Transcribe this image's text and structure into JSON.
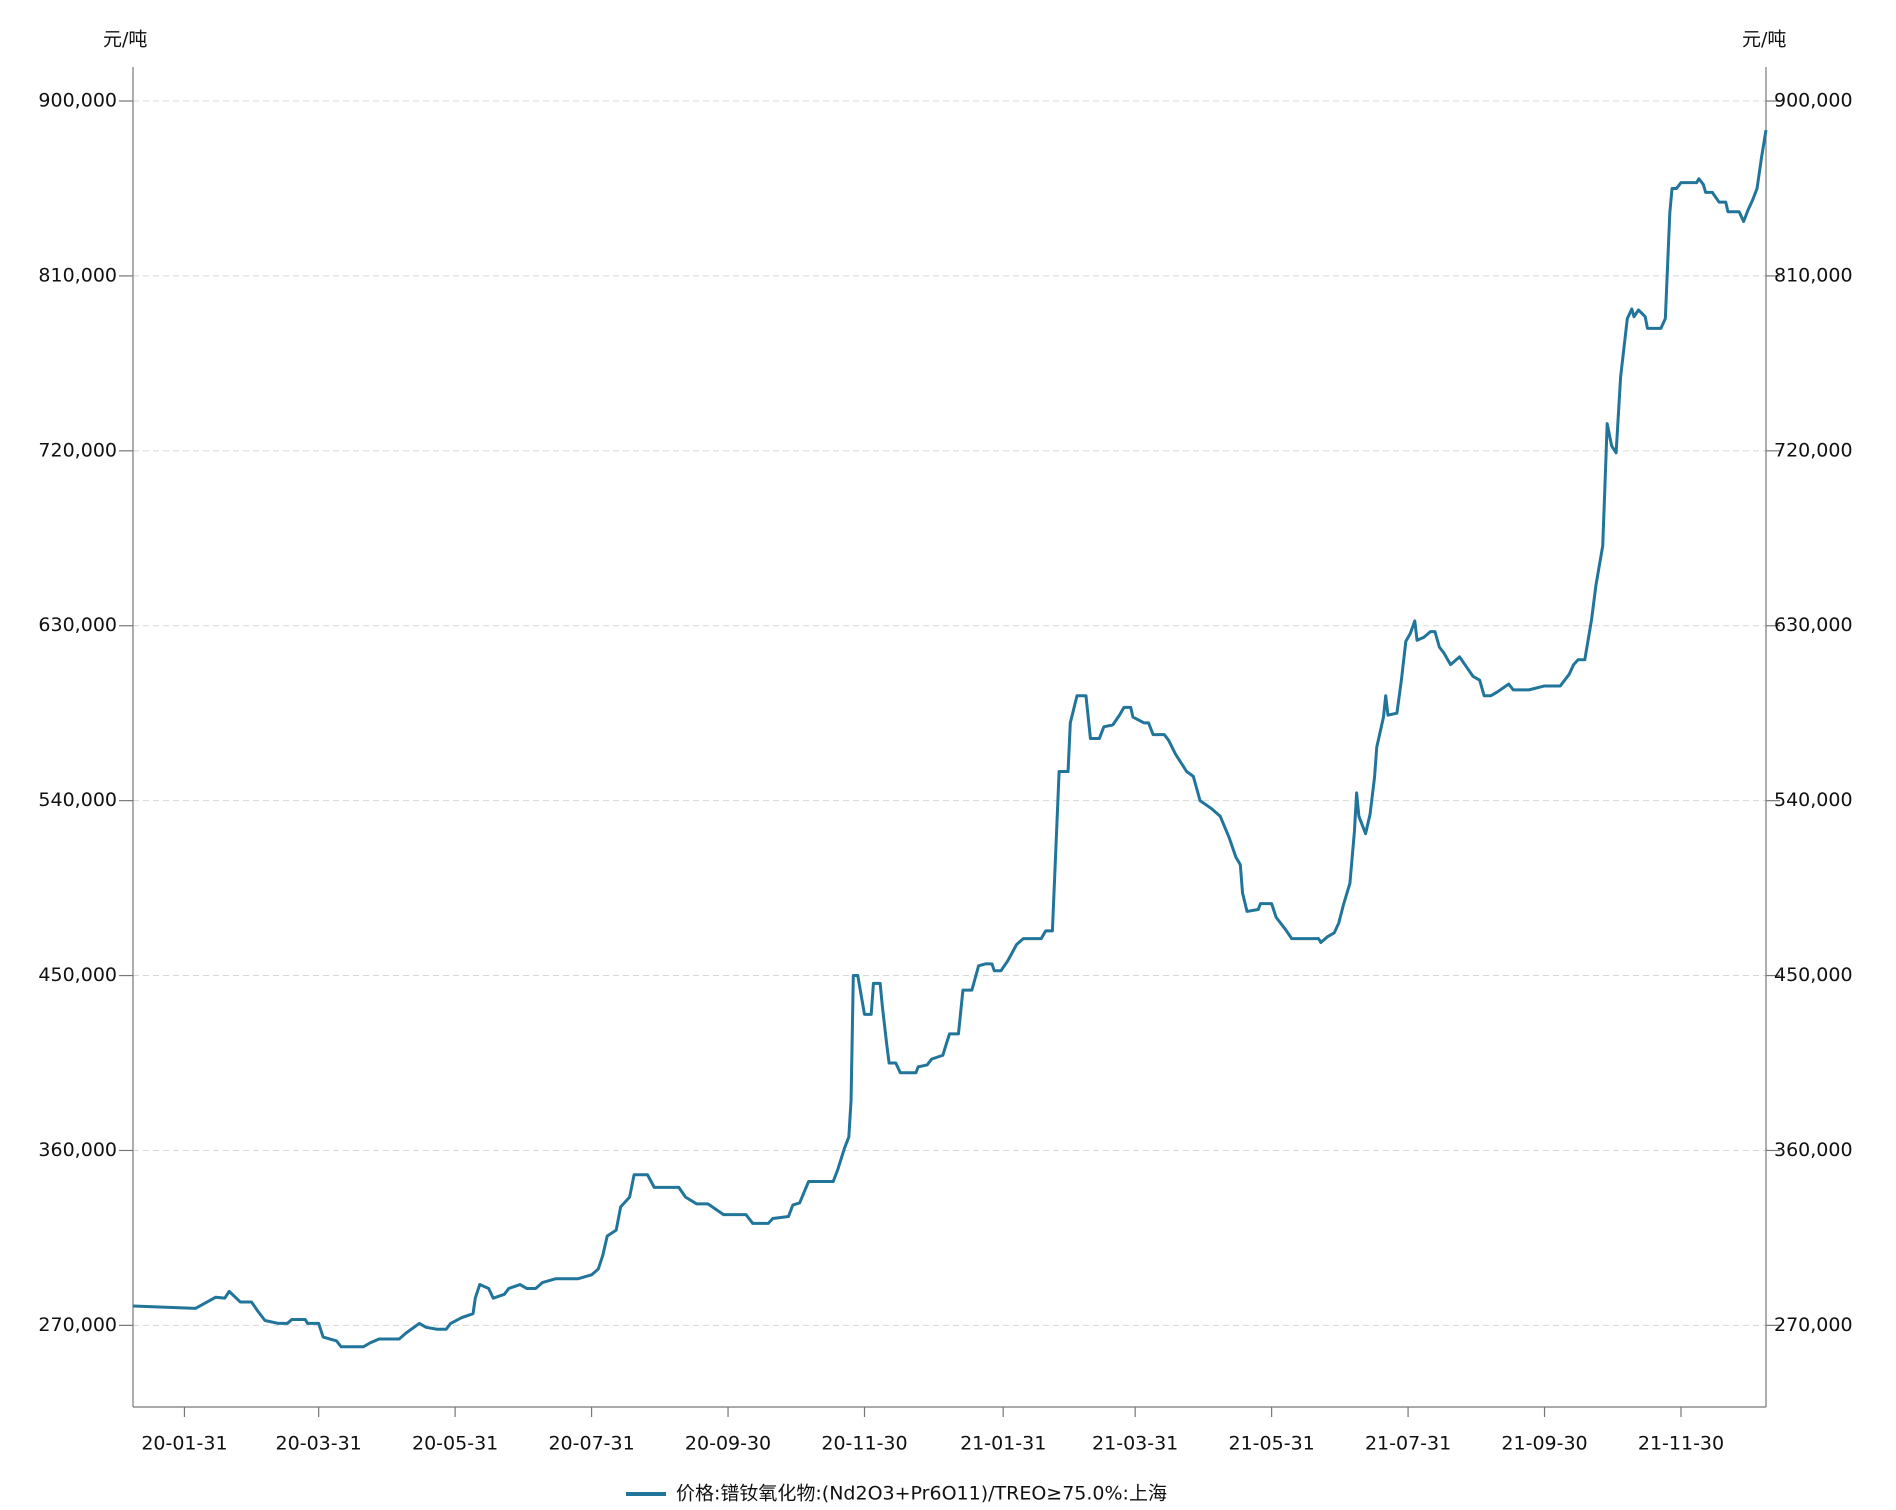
{
  "chart_data": {
    "type": "line",
    "y_axis_label": "元/吨",
    "x": [
      "2020-01-08",
      "2020-02-05",
      "2020-02-14",
      "2020-02-18",
      "2020-02-20",
      "2020-02-25",
      "2020-03-01",
      "2020-03-04",
      "2020-03-07",
      "2020-03-13",
      "2020-03-17",
      "2020-03-19",
      "2020-03-25",
      "2020-03-26",
      "2020-03-31",
      "2020-04-02",
      "2020-04-08",
      "2020-04-10",
      "2020-04-20",
      "2020-04-23",
      "2020-04-27",
      "2020-05-06",
      "2020-05-09",
      "2020-05-15",
      "2020-05-18",
      "2020-05-23",
      "2020-05-27",
      "2020-05-29",
      "2020-06-03",
      "2020-06-08",
      "2020-06-09",
      "2020-06-11",
      "2020-06-15",
      "2020-06-17",
      "2020-06-22",
      "2020-06-24",
      "2020-06-29",
      "2020-07-02",
      "2020-07-06",
      "2020-07-09",
      "2020-07-15",
      "2020-07-25",
      "2020-07-31",
      "2020-08-03",
      "2020-08-05",
      "2020-08-07",
      "2020-08-11",
      "2020-08-13",
      "2020-08-17",
      "2020-08-19",
      "2020-08-25",
      "2020-08-28",
      "2020-09-08",
      "2020-09-11",
      "2020-09-16",
      "2020-09-21",
      "2020-09-28",
      "2020-10-08",
      "2020-10-11",
      "2020-10-18",
      "2020-10-20",
      "2020-10-27",
      "2020-10-29",
      "2020-11-01",
      "2020-11-05",
      "2020-11-16",
      "2020-11-18",
      "2020-11-21",
      "2020-11-23",
      "2020-11-24",
      "2020-11-25",
      "2020-11-27",
      "2020-11-30",
      "2020-12-03",
      "2020-12-04",
      "2020-12-07",
      "2020-12-08",
      "2020-12-10",
      "2020-12-11",
      "2020-12-14",
      "2020-12-16",
      "2020-12-23",
      "2020-12-24",
      "2020-12-28",
      "2020-12-30",
      "2021-01-04",
      "2021-01-07",
      "2021-01-11",
      "2021-01-13",
      "2021-01-17",
      "2021-01-20",
      "2021-01-23",
      "2021-01-26",
      "2021-01-27",
      "2021-01-30",
      "2021-02-02",
      "2021-02-06",
      "2021-02-09",
      "2021-02-17",
      "2021-02-19",
      "2021-02-22",
      "2021-02-25",
      "2021-03-01",
      "2021-03-02",
      "2021-03-05",
      "2021-03-09",
      "2021-03-11",
      "2021-03-15",
      "2021-03-17",
      "2021-03-21",
      "2021-03-24",
      "2021-03-26",
      "2021-03-29",
      "2021-03-30",
      "2021-04-04",
      "2021-04-06",
      "2021-04-08",
      "2021-04-13",
      "2021-04-15",
      "2021-04-18",
      "2021-04-23",
      "2021-04-26",
      "2021-04-29",
      "2021-05-04",
      "2021-05-08",
      "2021-05-12",
      "2021-05-15",
      "2021-05-17",
      "2021-05-18",
      "2021-05-20",
      "2021-05-25",
      "2021-05-26",
      "2021-05-31",
      "2021-06-02",
      "2021-06-06",
      "2021-06-09",
      "2021-06-21",
      "2021-06-22",
      "2021-06-25",
      "2021-06-28",
      "2021-06-30",
      "2021-07-02",
      "2021-07-05",
      "2021-07-07",
      "2021-07-08",
      "2021-07-09",
      "2021-07-12",
      "2021-07-14",
      "2021-07-16",
      "2021-07-17",
      "2021-07-20",
      "2021-07-21",
      "2021-07-22",
      "2021-07-26",
      "2021-07-28",
      "2021-07-30",
      "2021-08-01",
      "2021-08-03",
      "2021-08-04",
      "2021-08-07",
      "2021-08-10",
      "2021-08-12",
      "2021-08-14",
      "2021-08-16",
      "2021-08-19",
      "2021-08-21",
      "2021-08-23",
      "2021-08-26",
      "2021-08-29",
      "2021-09-01",
      "2021-09-03",
      "2021-09-06",
      "2021-09-09",
      "2021-09-14",
      "2021-09-16",
      "2021-09-23",
      "2021-09-30",
      "2021-10-07",
      "2021-10-11",
      "2021-10-13",
      "2021-10-15",
      "2021-10-18",
      "2021-10-21",
      "2021-10-23",
      "2021-10-26",
      "2021-10-27",
      "2021-10-28",
      "2021-10-30",
      "2021-11-01",
      "2021-11-03",
      "2021-11-05",
      "2021-11-06",
      "2021-11-08",
      "2021-11-09",
      "2021-11-11",
      "2021-11-14",
      "2021-11-15",
      "2021-11-21",
      "2021-11-23",
      "2021-11-25",
      "2021-11-26",
      "2021-11-28",
      "2021-11-30",
      "2021-12-07",
      "2021-12-08",
      "2021-12-10",
      "2021-12-11",
      "2021-12-14",
      "2021-12-17",
      "2021-12-20",
      "2021-12-21",
      "2021-12-26",
      "2021-12-28",
      "2021-12-30",
      "2022-01-01",
      "2022-01-03",
      "2022-01-05",
      "2022-01-07"
    ],
    "series": [
      {
        "name": "价格:镨钕氧化物:(Nd2O3+Pr6O11)/TREO≥75.0%:上海",
        "color": "#21759b",
        "values": [
          280000,
          278750,
          284500,
          284000,
          287500,
          282000,
          282000,
          277000,
          272500,
          271000,
          271000,
          273000,
          273000,
          271000,
          271000,
          264000,
          262000,
          259000,
          259000,
          261000,
          263000,
          263000,
          266000,
          271000,
          269000,
          268000,
          268000,
          271000,
          274000,
          276000,
          284000,
          291000,
          289000,
          284000,
          286000,
          289000,
          291000,
          289000,
          289000,
          292000,
          294000,
          294000,
          296000,
          299000,
          306000,
          316000,
          319000,
          331000,
          336000,
          347500,
          347500,
          341000,
          341000,
          336000,
          332500,
          332500,
          327000,
          327000,
          322500,
          322500,
          325000,
          326000,
          332000,
          333000,
          344000,
          344000,
          350000,
          361000,
          367000,
          386000,
          450000,
          450000,
          430000,
          430000,
          446000,
          446000,
          434000,
          414000,
          405000,
          405000,
          400000,
          400000,
          403000,
          404000,
          407000,
          409000,
          420000,
          420000,
          442500,
          442500,
          455000,
          456000,
          456000,
          452500,
          452500,
          457500,
          466000,
          469000,
          469000,
          473000,
          473000,
          555000,
          555000,
          580000,
          594000,
          594000,
          572000,
          572000,
          578000,
          579000,
          584000,
          588000,
          588000,
          583000,
          580000,
          580000,
          574000,
          574000,
          571000,
          564000,
          555000,
          552500,
          540000,
          536000,
          532000,
          521000,
          511000,
          507000,
          492500,
          483000,
          484000,
          487000,
          487000,
          480000,
          474000,
          469000,
          469000,
          467000,
          470000,
          472000,
          477000,
          486000,
          497500,
          524000,
          544000,
          532000,
          523000,
          533000,
          552000,
          567500,
          583000,
          594000,
          584000,
          585000,
          602000,
          622000,
          626000,
          632500,
          622500,
          624000,
          627000,
          627000,
          619000,
          616000,
          610000,
          612000,
          614000,
          609000,
          604000,
          602000,
          594000,
          594000,
          596000,
          600000,
          597000,
          597000,
          599000,
          599000,
          605000,
          610000,
          612500,
          612500,
          633000,
          651000,
          671000,
          702000,
          734000,
          722500,
          719000,
          758000,
          778000,
          788000,
          793000,
          789000,
          792500,
          789000,
          783000,
          783000,
          788000,
          842500,
          855000,
          855000,
          858000,
          858000,
          860000,
          857000,
          853000,
          853000,
          848000,
          848000,
          843000,
          843000,
          838000,
          844000,
          849000,
          855000,
          871000,
          885000
        ]
      }
    ],
    "xlim": [
      "2020-01-08",
      "2022-01-07"
    ],
    "xticks": [
      {
        "value": "2020-01-31",
        "label": "20-01-31"
      },
      {
        "value": "2020-03-31",
        "label": "20-03-31"
      },
      {
        "value": "2020-05-31",
        "label": "20-05-31"
      },
      {
        "value": "2020-07-31",
        "label": "20-07-31"
      },
      {
        "value": "2020-09-30",
        "label": "20-09-30"
      },
      {
        "value": "2020-11-30",
        "label": "20-11-30"
      },
      {
        "value": "2021-01-31",
        "label": "21-01-31"
      },
      {
        "value": "2021-03-31",
        "label": "21-03-31"
      },
      {
        "value": "2021-05-31",
        "label": "21-05-31"
      },
      {
        "value": "2021-07-31",
        "label": "21-07-31"
      },
      {
        "value": "2021-09-30",
        "label": "21-09-30"
      },
      {
        "value": "2021-11-30",
        "label": "21-11-30"
      }
    ],
    "ylim": [
      228000,
      917500
    ],
    "yticks": [
      {
        "value": 270000,
        "label": "270,000"
      },
      {
        "value": 360000,
        "label": "360,000"
      },
      {
        "value": 450000,
        "label": "450,000"
      },
      {
        "value": 540000,
        "label": "540,000"
      },
      {
        "value": 630000,
        "label": "630,000"
      },
      {
        "value": 720000,
        "label": "720,000"
      },
      {
        "value": 810000,
        "label": "810,000"
      },
      {
        "value": 900000,
        "label": "900,000"
      }
    ],
    "grid": true,
    "mirror_y_axis": true,
    "legend": "bottom"
  }
}
